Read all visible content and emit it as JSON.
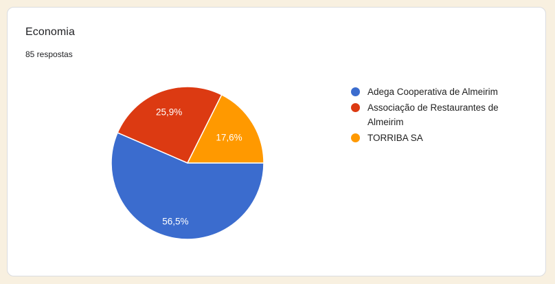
{
  "card": {
    "title": "Economia",
    "subtitle": "85 respostas"
  },
  "chart_data": {
    "type": "pie",
    "title": "Economia",
    "subtitle": "85 respostas",
    "legend_position": "right",
    "start_angle_deg": 0,
    "direction": "clockwise",
    "slices": [
      {
        "label": "Adega Cooperativa de Almeirim",
        "pct": 56.5,
        "pct_label": "56,5%",
        "color": "#3B6CCE",
        "label_radius_frac": 0.78
      },
      {
        "label": "Associação de Restaurantes de Almeirim",
        "pct": 25.9,
        "pct_label": "25,9%",
        "color": "#DC3A12",
        "label_radius_frac": 0.71
      },
      {
        "label": "TORRIBA SA",
        "pct": 17.6,
        "pct_label": "17,6%",
        "color": "#FF9900",
        "label_radius_frac": 0.64
      }
    ]
  },
  "colors": {
    "page_bg": "#F8F0E0",
    "card_bg": "#FFFFFF",
    "card_border": "#DADCE0",
    "title_text": "#202124",
    "subtitle_text": "#202124",
    "legend_text": "#212121",
    "slice_label_text": "#FFFFFF",
    "slice_separator": "#FFFFFF"
  }
}
